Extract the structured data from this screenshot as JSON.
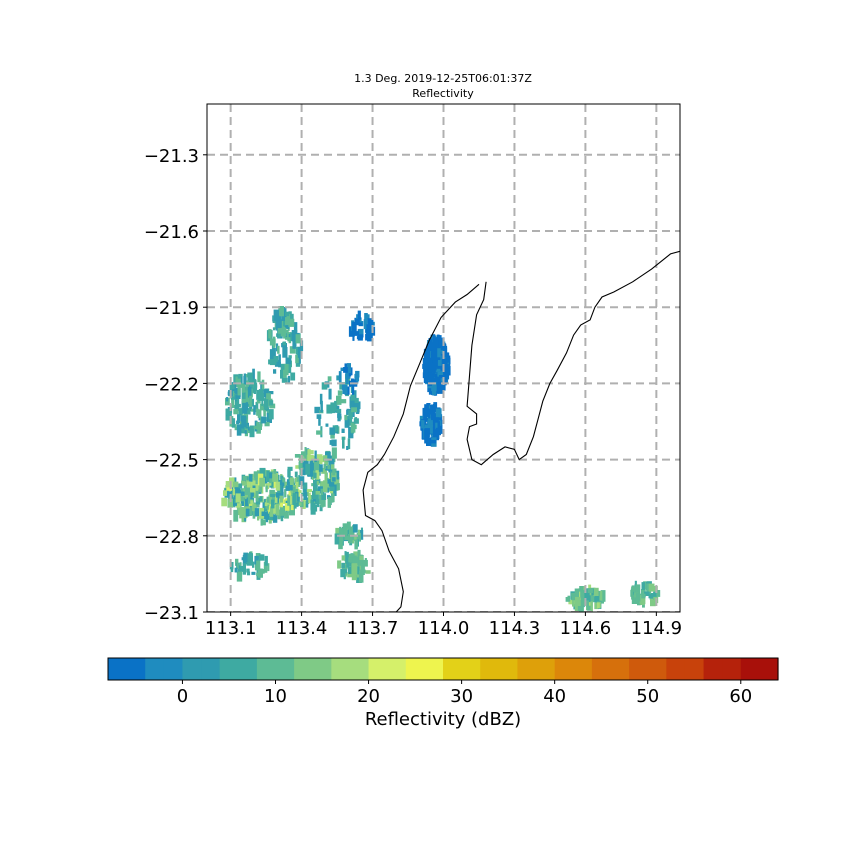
{
  "chart_data": {
    "type": "heatmap",
    "title_line1": "1.3 Deg. 2019-12-25T06:01:37Z",
    "title_line2": "Reflectivity",
    "x_ticks": [
      113.1,
      113.4,
      113.7,
      114.0,
      114.3,
      114.6,
      114.9
    ],
    "x_tick_labels": [
      "113.1",
      "113.4",
      "113.7",
      "114.0",
      "114.3",
      "114.6",
      "114.9"
    ],
    "y_ticks": [
      -21.3,
      -21.6,
      -21.9,
      -22.2,
      -22.5,
      -22.8,
      -23.1
    ],
    "y_tick_labels": [
      "−21.3",
      "−21.6",
      "−21.9",
      "−22.2",
      "−22.5",
      "−22.8",
      "−23.1"
    ],
    "xlim": [
      113.0,
      115.0
    ],
    "ylim": [
      -23.1,
      -21.1
    ],
    "grid": true,
    "colorbar": {
      "label": "Reflectivity (dBZ)",
      "range": [
        -8,
        64
      ],
      "ticks": [
        0,
        10,
        20,
        30,
        40,
        50,
        60
      ],
      "tick_labels": [
        "0",
        "10",
        "20",
        "30",
        "40",
        "50",
        "60"
      ],
      "stops": [
        {
          "v": -8,
          "c": "#0a72c6"
        },
        {
          "v": -4,
          "c": "#1f8cbf"
        },
        {
          "v": 0,
          "c": "#2f9bb0"
        },
        {
          "v": 4,
          "c": "#3eaaa2"
        },
        {
          "v": 8,
          "c": "#5dbb95"
        },
        {
          "v": 12,
          "c": "#7fca86"
        },
        {
          "v": 16,
          "c": "#a6dd7e"
        },
        {
          "v": 20,
          "c": "#d5f06a"
        },
        {
          "v": 24,
          "c": "#eef44e"
        },
        {
          "v": 28,
          "c": "#e3d118"
        },
        {
          "v": 32,
          "c": "#e0b90c"
        },
        {
          "v": 36,
          "c": "#dea00a"
        },
        {
          "v": 40,
          "c": "#dc870a"
        },
        {
          "v": 44,
          "c": "#d6700c"
        },
        {
          "v": 48,
          "c": "#cf5a0c"
        },
        {
          "v": 52,
          "c": "#c8420b"
        },
        {
          "v": 56,
          "c": "#b5220b"
        },
        {
          "v": 60,
          "c": "#a8100a"
        },
        {
          "v": 64,
          "c": "#a00b0a"
        }
      ]
    },
    "coastline": [
      [
        114.15,
        -21.81
      ],
      [
        114.1,
        -21.85
      ],
      [
        114.05,
        -21.88
      ],
      [
        113.99,
        -21.94
      ],
      [
        113.94,
        -22.03
      ],
      [
        113.9,
        -22.12
      ],
      [
        113.86,
        -22.21
      ],
      [
        113.83,
        -22.32
      ],
      [
        113.79,
        -22.41
      ],
      [
        113.75,
        -22.48
      ],
      [
        113.72,
        -22.52
      ],
      [
        113.68,
        -22.55
      ],
      [
        113.66,
        -22.62
      ],
      [
        113.67,
        -22.72
      ],
      [
        113.71,
        -22.74
      ],
      [
        113.74,
        -22.78
      ],
      [
        113.77,
        -22.86
      ],
      [
        113.81,
        -22.93
      ],
      [
        113.83,
        -23.02
      ],
      [
        113.82,
        -23.08
      ],
      [
        113.8,
        -23.1
      ]
    ],
    "peninsula": [
      [
        114.18,
        -21.8
      ],
      [
        114.17,
        -21.87
      ],
      [
        114.14,
        -21.93
      ],
      [
        114.12,
        -22.05
      ],
      [
        114.11,
        -22.17
      ],
      [
        114.1,
        -22.29
      ],
      [
        114.14,
        -22.32
      ],
      [
        114.14,
        -22.36
      ],
      [
        114.11,
        -22.37
      ],
      [
        114.1,
        -22.42
      ],
      [
        114.12,
        -22.5
      ],
      [
        114.16,
        -22.52
      ],
      [
        114.21,
        -22.48
      ],
      [
        114.26,
        -22.45
      ],
      [
        114.3,
        -22.46
      ],
      [
        114.32,
        -22.5
      ],
      [
        114.35,
        -22.48
      ],
      [
        114.38,
        -22.41
      ],
      [
        114.4,
        -22.34
      ],
      [
        114.42,
        -22.27
      ],
      [
        114.45,
        -22.2
      ],
      [
        114.48,
        -22.15
      ],
      [
        114.52,
        -22.08
      ],
      [
        114.55,
        -22.01
      ],
      [
        114.58,
        -21.97
      ],
      [
        114.62,
        -21.95
      ],
      [
        114.64,
        -21.9
      ],
      [
        114.67,
        -21.86
      ],
      [
        114.72,
        -21.84
      ],
      [
        114.8,
        -21.8
      ],
      [
        114.88,
        -21.75
      ],
      [
        114.96,
        -21.69
      ],
      [
        115.0,
        -21.68
      ]
    ]
  }
}
